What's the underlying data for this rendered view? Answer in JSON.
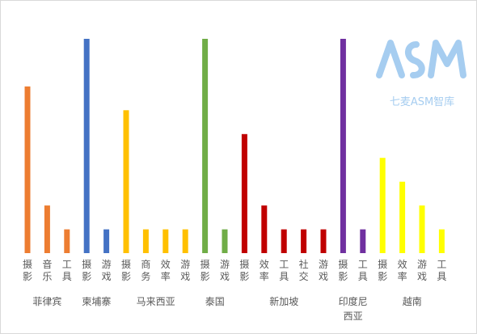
{
  "watermark": {
    "text": "七麦ASM智库",
    "color": "#a6cdf0"
  },
  "chart_data": {
    "type": "bar",
    "title": "",
    "xlabel": "",
    "ylabel": "",
    "ylim": [
      0,
      9
    ],
    "grid": false,
    "legend": "none",
    "y_axis_visible": false,
    "groups": [
      {
        "name": "菲律宾",
        "color": "#ed7d31",
        "categories": [
          "摄影",
          "音乐",
          "工具"
        ],
        "values": [
          7,
          2,
          1
        ]
      },
      {
        "name": "柬埔寨",
        "color": "#4472c4",
        "categories": [
          "摄影",
          "游戏"
        ],
        "values": [
          9,
          1
        ]
      },
      {
        "name": "马来西亚",
        "color": "#ffc000",
        "categories": [
          "摄影",
          "商务",
          "效率",
          "游戏"
        ],
        "values": [
          6,
          1,
          1,
          1
        ]
      },
      {
        "name": "泰国",
        "color": "#70ad47",
        "categories": [
          "摄影",
          "游戏"
        ],
        "values": [
          9,
          1
        ]
      },
      {
        "name": "新加坡",
        "color": "#c00000",
        "categories": [
          "摄影",
          "效率",
          "工具",
          "社交",
          "游戏"
        ],
        "values": [
          5,
          2,
          1,
          1,
          1
        ]
      },
      {
        "name": "印度尼西亚",
        "color": "#7030a0",
        "categories": [
          "摄影",
          "工具"
        ],
        "values": [
          9,
          1
        ]
      },
      {
        "name": "越南",
        "color": "#ffff00",
        "categories": [
          "摄影",
          "效率",
          "游戏",
          "工具"
        ],
        "values": [
          4,
          3,
          2,
          1
        ]
      }
    ]
  }
}
